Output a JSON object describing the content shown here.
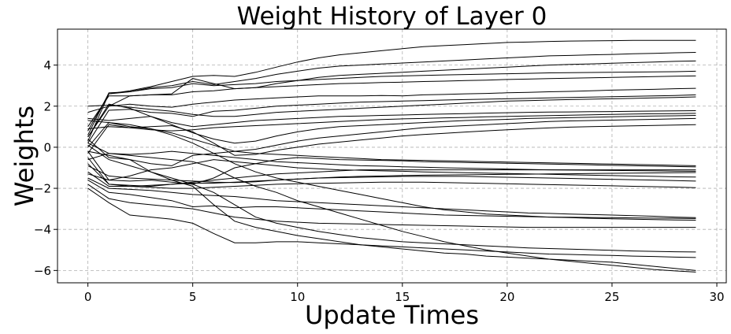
{
  "chart_data": {
    "type": "line",
    "title": "Weight History of Layer 0",
    "xlabel": "Update Times",
    "ylabel": "Weights",
    "xlim": [
      -1.45,
      30.45
    ],
    "ylim": [
      -6.6,
      5.75
    ],
    "xticks": [
      0,
      5,
      10,
      15,
      20,
      25,
      30
    ],
    "yticks": [
      -6,
      -4,
      -2,
      0,
      2,
      4
    ],
    "xtick_labels": [
      "0",
      "5",
      "10",
      "15",
      "20",
      "25",
      "30"
    ],
    "ytick_labels": [
      "−6",
      "−4",
      "−2",
      "0",
      "2",
      "4"
    ],
    "grid": true,
    "line_color": "#000000",
    "x": [
      0,
      1,
      2,
      3,
      4,
      5,
      6,
      7,
      8,
      9,
      10,
      11,
      12,
      13,
      14,
      15,
      16,
      17,
      18,
      19,
      20,
      21,
      22,
      23,
      24,
      25,
      26,
      27,
      28,
      29
    ],
    "series": [
      {
        "values": [
          0.3,
          2.6,
          2.75,
          2.95,
          3.2,
          3.45,
          3.5,
          3.45,
          3.65,
          3.9,
          4.15,
          4.35,
          4.5,
          4.6,
          4.7,
          4.8,
          4.9,
          4.95,
          5.0,
          5.05,
          5.1,
          5.12,
          5.15,
          5.17,
          5.18,
          5.19,
          5.2,
          5.2,
          5.2,
          5.2
        ]
      },
      {
        "values": [
          0.6,
          2.65,
          2.7,
          2.9,
          3.0,
          3.2,
          3.05,
          3.2,
          3.35,
          3.55,
          3.7,
          3.85,
          3.95,
          4.0,
          4.05,
          4.1,
          4.15,
          4.2,
          4.25,
          4.3,
          4.35,
          4.4,
          4.45,
          4.47,
          4.5,
          4.52,
          4.55,
          4.57,
          4.6,
          4.62
        ]
      },
      {
        "values": [
          1.7,
          2.0,
          2.5,
          2.55,
          2.6,
          3.35,
          3.1,
          2.85,
          2.9,
          3.1,
          3.25,
          3.4,
          3.5,
          3.55,
          3.6,
          3.65,
          3.7,
          3.75,
          3.8,
          3.85,
          3.9,
          3.95,
          4.0,
          4.03,
          4.06,
          4.09,
          4.12,
          4.15,
          4.18,
          4.2
        ]
      },
      {
        "values": [
          0.8,
          2.6,
          2.7,
          2.85,
          2.9,
          3.1,
          3.0,
          3.05,
          3.1,
          3.2,
          3.25,
          3.3,
          3.35,
          3.4,
          3.45,
          3.47,
          3.5,
          3.52,
          3.54,
          3.56,
          3.58,
          3.6,
          3.62,
          3.63,
          3.64,
          3.65,
          3.66,
          3.67,
          3.68,
          3.7
        ]
      },
      {
        "values": [
          1.0,
          2.5,
          2.5,
          2.55,
          2.55,
          2.7,
          2.75,
          2.85,
          2.9,
          2.95,
          3.0,
          3.05,
          3.1,
          3.12,
          3.15,
          3.17,
          3.2,
          3.22,
          3.25,
          3.27,
          3.3,
          3.32,
          3.34,
          3.36,
          3.38,
          3.4,
          3.42,
          3.44,
          3.46,
          3.47
        ]
      },
      {
        "values": [
          0.5,
          2.0,
          2.1,
          2.0,
          1.95,
          2.1,
          2.2,
          2.3,
          2.35,
          2.4,
          2.45,
          2.5,
          2.5,
          2.5,
          2.52,
          2.5,
          2.55,
          2.57,
          2.6,
          2.62,
          2.65,
          2.67,
          2.7,
          2.72,
          2.75,
          2.78,
          2.8,
          2.82,
          2.85,
          2.87
        ]
      },
      {
        "values": [
          0.2,
          1.8,
          1.85,
          1.7,
          1.65,
          1.5,
          1.75,
          1.8,
          1.9,
          2.0,
          2.05,
          2.1,
          2.15,
          2.2,
          2.22,
          2.25,
          2.27,
          2.3,
          2.32,
          2.34,
          2.36,
          2.38,
          2.4,
          2.42,
          2.44,
          2.46,
          2.48,
          2.5,
          2.52,
          2.55
        ]
      },
      {
        "values": [
          2.0,
          2.05,
          1.95,
          1.85,
          1.75,
          1.6,
          1.5,
          1.5,
          1.6,
          1.7,
          1.75,
          1.8,
          1.85,
          1.9,
          1.95,
          2.0,
          2.05,
          2.1,
          2.15,
          2.2,
          2.25,
          2.27,
          2.3,
          2.32,
          2.34,
          2.36,
          2.38,
          2.4,
          2.42,
          2.45
        ]
      },
      {
        "values": [
          1.4,
          1.3,
          1.4,
          1.5,
          1.2,
          1.0,
          1.1,
          1.2,
          1.3,
          1.35,
          1.4,
          1.45,
          1.5,
          1.52,
          1.55,
          1.57,
          1.6,
          1.62,
          1.64,
          1.66,
          1.68,
          1.7,
          1.71,
          1.72,
          1.73,
          1.74,
          1.75,
          1.76,
          1.77,
          1.78
        ]
      },
      {
        "values": [
          0.9,
          1.0,
          0.95,
          0.85,
          0.8,
          0.85,
          0.95,
          1.0,
          1.05,
          1.1,
          1.15,
          1.2,
          1.25,
          1.3,
          1.35,
          1.38,
          1.4,
          1.43,
          1.45,
          1.48,
          1.5,
          1.52,
          1.54,
          1.56,
          1.58,
          1.6,
          1.62,
          1.63,
          1.64,
          1.65
        ]
      },
      {
        "values": [
          0.5,
          2.1,
          1.9,
          1.5,
          1.1,
          0.7,
          0.4,
          0.2,
          0.3,
          0.55,
          0.75,
          0.9,
          1.0,
          1.05,
          1.1,
          1.15,
          1.2,
          1.25,
          1.3,
          1.33,
          1.36,
          1.4,
          1.42,
          1.44,
          1.46,
          1.48,
          1.5,
          1.52,
          1.53,
          1.55
        ]
      },
      {
        "values": [
          0.0,
          1.2,
          1.0,
          0.9,
          0.7,
          0.4,
          0.1,
          -0.2,
          -0.1,
          0.1,
          0.3,
          0.45,
          0.55,
          0.65,
          0.75,
          0.85,
          0.95,
          1.0,
          1.05,
          1.1,
          1.15,
          1.2,
          1.25,
          1.28,
          1.3,
          1.32,
          1.34,
          1.36,
          1.38,
          1.4
        ]
      },
      {
        "values": [
          -0.3,
          1.1,
          0.95,
          1.0,
          1.05,
          0.75,
          0.2,
          -0.4,
          -0.35,
          -0.15,
          0.0,
          0.15,
          0.25,
          0.35,
          0.45,
          0.55,
          0.62,
          0.68,
          0.74,
          0.8,
          0.85,
          0.9,
          0.94,
          0.98,
          1.0,
          1.02,
          1.04,
          1.06,
          1.08,
          1.1
        ]
      },
      {
        "values": [
          0.4,
          -0.5,
          -0.6,
          -0.8,
          -0.9,
          -0.4,
          -0.3,
          -0.2,
          -0.3,
          -0.35,
          -0.4,
          -0.45,
          -0.5,
          -0.55,
          -0.6,
          -0.62,
          -0.64,
          -0.66,
          -0.68,
          -0.7,
          -0.72,
          -0.74,
          -0.76,
          -0.78,
          -0.8,
          -0.82,
          -0.84,
          -0.86,
          -0.88,
          -0.9
        ]
      },
      {
        "values": [
          0.2,
          -0.3,
          -0.35,
          -0.3,
          -0.2,
          -0.3,
          -0.4,
          -0.5,
          -0.6,
          -0.7,
          -0.75,
          -0.8,
          -0.85,
          -0.9,
          -0.92,
          -0.95,
          -0.97,
          -1.0,
          -1.02,
          -1.04,
          -1.06,
          -1.08,
          -1.1,
          -1.11,
          -1.12,
          -1.13,
          -1.14,
          -1.15,
          -1.16,
          -1.17
        ]
      },
      {
        "values": [
          -0.2,
          -1.6,
          -1.4,
          -1.1,
          -1.0,
          -0.8,
          -0.6,
          -0.7,
          -0.8,
          -0.9,
          -1.0,
          -1.05,
          -1.1,
          -1.12,
          -1.15,
          -1.17,
          -1.2,
          -1.22,
          -1.24,
          -1.26,
          -1.28,
          -1.3,
          -1.32,
          -1.34,
          -1.36,
          -1.38,
          -1.4,
          -1.42,
          -1.44,
          -1.45
        ]
      },
      {
        "values": [
          -0.5,
          -1.8,
          -1.85,
          -1.9,
          -1.8,
          -1.7,
          -1.6,
          -1.5,
          -1.4,
          -1.3,
          -1.25,
          -1.2,
          -1.15,
          -1.1,
          -1.1,
          -1.1,
          -1.1,
          -1.1,
          -1.1,
          -1.1,
          -1.1,
          -1.1,
          -1.1,
          -1.1,
          -1.1,
          -1.1,
          -1.1,
          -1.1,
          -1.1,
          -1.1
        ]
      },
      {
        "values": [
          -1.2,
          -1.9,
          -1.9,
          -1.85,
          -1.8,
          -1.75,
          -1.75,
          -1.7,
          -1.65,
          -1.6,
          -1.55,
          -1.5,
          -1.48,
          -1.46,
          -1.44,
          -1.42,
          -1.42,
          -1.42,
          -1.42,
          -1.44,
          -1.46,
          -1.48,
          -1.5,
          -1.52,
          -1.54,
          -1.56,
          -1.58,
          -1.6,
          -1.62,
          -1.65
        ]
      },
      {
        "values": [
          -0.8,
          -1.8,
          -1.9,
          -1.95,
          -2.0,
          -2.0,
          -1.95,
          -1.9,
          -1.85,
          -1.8,
          -1.78,
          -1.76,
          -1.74,
          -1.72,
          -1.7,
          -1.7,
          -1.7,
          -1.72,
          -1.74,
          -1.76,
          -1.78,
          -1.8,
          -1.82,
          -1.84,
          -1.86,
          -1.88,
          -1.9,
          -1.92,
          -1.94,
          -1.97
        ]
      },
      {
        "values": [
          -1.5,
          -2.0,
          -2.05,
          -2.1,
          -2.2,
          -2.3,
          -2.35,
          -2.4,
          -2.5,
          -2.6,
          -2.65,
          -2.7,
          -2.75,
          -2.8,
          -2.85,
          -2.9,
          -2.95,
          -3.0,
          -3.05,
          -3.1,
          -3.15,
          -3.2,
          -3.22,
          -3.25,
          -3.28,
          -3.3,
          -3.33,
          -3.36,
          -3.4,
          -3.43
        ]
      },
      {
        "values": [
          -1.6,
          -2.2,
          -2.3,
          -2.45,
          -2.6,
          -2.9,
          -2.85,
          -2.95,
          -2.9,
          -2.9,
          -2.95,
          -3.0,
          -3.05,
          -3.1,
          -3.15,
          -3.2,
          -3.25,
          -3.3,
          -3.32,
          -3.34,
          -3.36,
          -3.38,
          -3.4,
          -3.41,
          -3.42,
          -3.43,
          -3.44,
          -3.45,
          -3.46,
          -3.47
        ]
      },
      {
        "values": [
          -1.8,
          -2.5,
          -2.7,
          -2.8,
          -2.9,
          -3.0,
          -3.2,
          -3.4,
          -3.5,
          -3.6,
          -3.65,
          -3.7,
          -3.72,
          -3.74,
          -3.76,
          -3.78,
          -3.8,
          -3.82,
          -3.84,
          -3.86,
          -3.88,
          -3.9,
          -3.9,
          -3.9,
          -3.9,
          -3.9,
          -3.9,
          -3.9,
          -3.9,
          -3.9
        ]
      },
      {
        "values": [
          -0.2,
          -0.4,
          -0.6,
          -1.2,
          -1.6,
          -1.9,
          -2.8,
          -3.6,
          -3.9,
          -4.1,
          -4.3,
          -4.45,
          -4.6,
          -4.75,
          -4.85,
          -4.95,
          -5.05,
          -5.15,
          -5.2,
          -5.3,
          -5.35,
          -5.4,
          -5.45,
          -5.5,
          -5.55,
          -5.6,
          -5.7,
          -5.8,
          -5.9,
          -6.0
        ]
      },
      {
        "values": [
          -2.0,
          -2.7,
          -3.3,
          -3.4,
          -3.5,
          -3.7,
          -4.2,
          -4.65,
          -4.65,
          -4.6,
          -4.6,
          -4.65,
          -4.7,
          -4.75,
          -4.8,
          -4.85,
          -4.9,
          -4.95,
          -5.0,
          -5.05,
          -5.1,
          -5.15,
          -5.2,
          -5.22,
          -5.25,
          -5.27,
          -5.3,
          -5.32,
          -5.35,
          -5.37
        ]
      },
      {
        "values": [
          -1.3,
          -1.6,
          -1.65,
          -1.6,
          -1.7,
          -1.8,
          -2.2,
          -2.8,
          -3.4,
          -3.7,
          -3.9,
          -4.1,
          -4.25,
          -4.4,
          -4.5,
          -4.6,
          -4.65,
          -4.7,
          -4.75,
          -4.8,
          -4.85,
          -4.9,
          -4.93,
          -4.96,
          -4.99,
          -5.02,
          -5.05,
          -5.07,
          -5.09,
          -5.1
        ]
      },
      {
        "values": [
          0.1,
          -0.6,
          -0.9,
          -1.2,
          -1.5,
          -1.8,
          -1.5,
          -1.0,
          -0.8,
          -0.6,
          -0.5,
          -0.55,
          -0.6,
          -0.62,
          -0.64,
          -0.66,
          -0.7,
          -0.72,
          -0.74,
          -0.76,
          -0.78,
          -0.8,
          -0.82,
          -0.84,
          -0.86,
          -0.88,
          -0.9,
          -0.92,
          -0.94,
          -0.96
        ]
      },
      {
        "values": [
          1.3,
          1.2,
          1.1,
          0.9,
          0.6,
          0.2,
          -0.3,
          -0.8,
          -1.2,
          -1.5,
          -1.7,
          -1.9,
          -2.1,
          -2.3,
          -2.5,
          -2.7,
          -2.9,
          -3.05,
          -3.15,
          -3.25,
          -3.3,
          -3.35,
          -3.4,
          -3.43,
          -3.46,
          -3.48,
          -3.5,
          -3.52,
          -3.54,
          -3.55
        ]
      },
      {
        "values": [
          -0.6,
          -0.3,
          -0.4,
          -0.5,
          -0.6,
          -0.7,
          -1.0,
          -1.5,
          -1.9,
          -2.2,
          -2.6,
          -2.9,
          -3.2,
          -3.5,
          -3.8,
          -4.1,
          -4.35,
          -4.6,
          -4.8,
          -5.0,
          -5.15,
          -5.3,
          -5.45,
          -5.55,
          -5.65,
          -5.75,
          -5.85,
          -5.95,
          -6.02,
          -6.08
        ]
      },
      {
        "values": [
          -0.9,
          -1.4,
          -1.5,
          -1.55,
          -1.6,
          -1.65,
          -1.7,
          -1.72,
          -1.68,
          -1.6,
          -1.55,
          -1.5,
          -1.45,
          -1.42,
          -1.4,
          -1.38,
          -1.36,
          -1.35,
          -1.34,
          -1.33,
          -1.32,
          -1.31,
          -1.3,
          -1.29,
          -1.28,
          -1.27,
          -1.26,
          -1.25,
          -1.24,
          -1.23
        ]
      }
    ]
  }
}
